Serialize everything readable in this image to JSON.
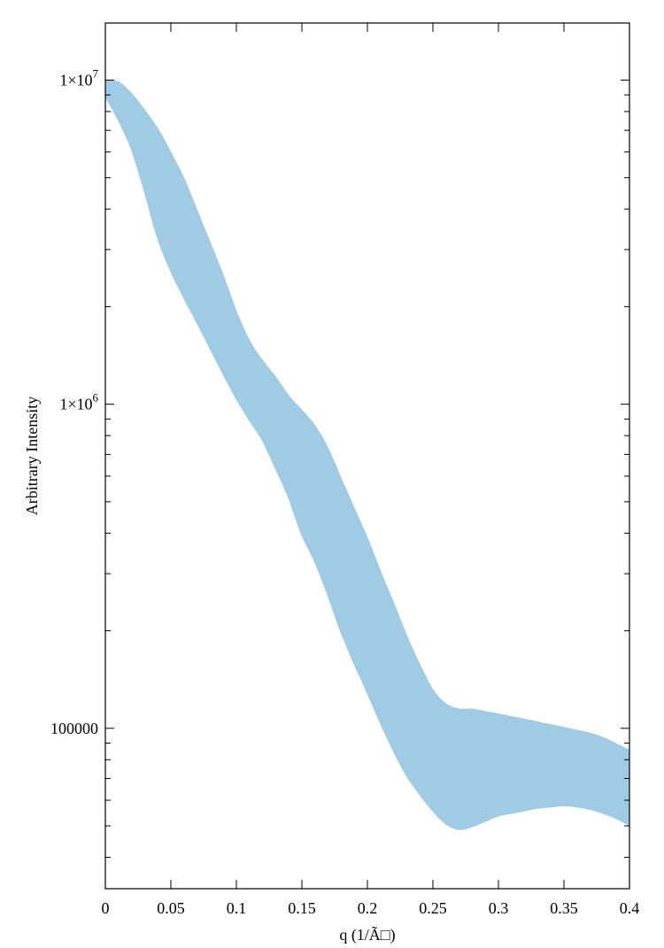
{
  "chart_data": {
    "type": "line",
    "title": "",
    "xlabel": "q (1/Ã□)",
    "ylabel": "Arbitrary Intensity",
    "xlim": [
      0,
      0.4
    ],
    "ylim": [
      32000,
      15000000
    ],
    "yscale": "log",
    "grid": false,
    "legend": "none",
    "x_ticks": [
      {
        "value": 0,
        "label": "0"
      },
      {
        "value": 0.05,
        "label": "0.05"
      },
      {
        "value": 0.1,
        "label": "0.1"
      },
      {
        "value": 0.15,
        "label": "0.15"
      },
      {
        "value": 0.2,
        "label": "0.2"
      },
      {
        "value": 0.25,
        "label": "0.25"
      },
      {
        "value": 0.3,
        "label": "0.3"
      },
      {
        "value": 0.35,
        "label": "0.35"
      },
      {
        "value": 0.4,
        "label": "0.4"
      }
    ],
    "y_ticks": [
      {
        "value": 10000000,
        "mantissa": "1×10",
        "exp": "7"
      },
      {
        "value": 1000000,
        "mantissa": "1×10",
        "exp": "6"
      },
      {
        "value": 100000,
        "mantissa": "100000",
        "exp": ""
      }
    ],
    "color": "#a0cbe4",
    "ensemble_envelope": {
      "q": [
        0,
        0.01,
        0.02,
        0.03,
        0.04,
        0.05,
        0.06,
        0.07,
        0.08,
        0.09,
        0.1,
        0.11,
        0.12,
        0.13,
        0.14,
        0.15,
        0.16,
        0.17,
        0.18,
        0.19,
        0.2,
        0.21,
        0.22,
        0.23,
        0.24,
        0.25,
        0.26,
        0.27,
        0.28,
        0.29,
        0.3,
        0.31,
        0.32,
        0.33,
        0.34,
        0.35,
        0.36,
        0.37,
        0.38,
        0.39,
        0.4
      ],
      "upper": [
        9900000,
        9800000,
        9000000,
        8000000,
        7000000,
        5900000,
        4900000,
        3900000,
        3100000,
        2450000,
        1900000,
        1550000,
        1350000,
        1200000,
        1050000,
        950000,
        850000,
        720000,
        580000,
        470000,
        380000,
        300000,
        240000,
        190000,
        155000,
        130000,
        118000,
        114000,
        114000,
        112000,
        110000,
        108000,
        106000,
        104000,
        102000,
        100000,
        98000,
        96000,
        93000,
        89000,
        85000
      ],
      "lower": [
        9000000,
        7600000,
        6200000,
        4600000,
        3300000,
        2600000,
        2150000,
        1800000,
        1500000,
        1250000,
        1050000,
        900000,
        780000,
        640000,
        520000,
        400000,
        330000,
        260000,
        200000,
        160000,
        130000,
        105000,
        86000,
        72000,
        63000,
        56000,
        51000,
        49000,
        50000,
        52000,
        54000,
        55000,
        56000,
        57000,
        57500,
        58000,
        57500,
        56500,
        55000,
        53000,
        50500
      ]
    }
  }
}
